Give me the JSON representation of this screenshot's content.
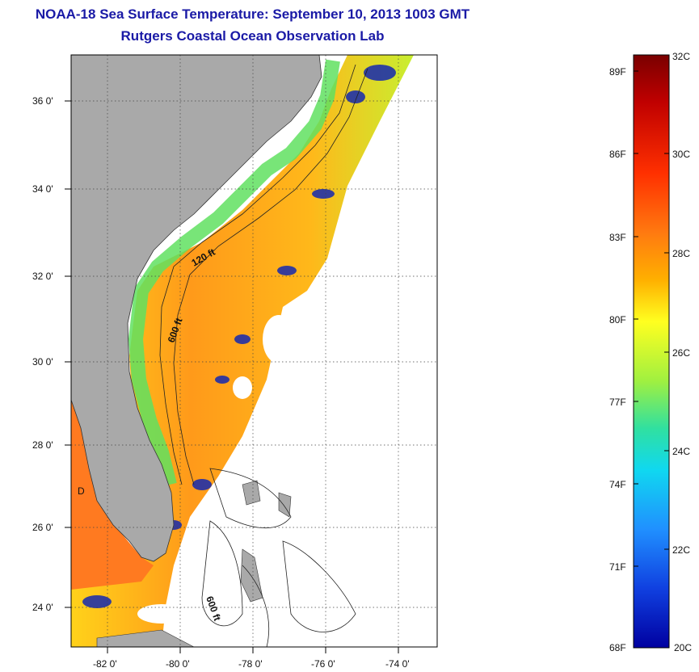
{
  "title_line1": "NOAA-18 Sea Surface Temperature:  September 10, 2013 1003 GMT",
  "title_line2": "Rutgers Coastal Ocean Observation Lab",
  "map": {
    "lat_ticks": [
      "36 0'",
      "34 0'",
      "32 0'",
      "30 0'",
      "28 0'",
      "26 0'",
      "24 0'"
    ],
    "lon_ticks": [
      "-82 0'",
      "-80 0'",
      "-78 0'",
      "-76 0'",
      "-74 0'"
    ],
    "contour_labels": [
      "120 ft",
      "600 ft",
      "600 ft"
    ],
    "land_color": "#a9a9a9",
    "region_label": "D"
  },
  "colorbar": {
    "fahrenheit_labels": [
      "89F",
      "86F",
      "83F",
      "80F",
      "77F",
      "74F",
      "71F",
      "68F"
    ],
    "celsius_labels": [
      "32C",
      "30C",
      "28C",
      "26C",
      "24C",
      "22C",
      "20C"
    ],
    "colors_top_to_bottom": [
      "#7a0000",
      "#c00000",
      "#ff3000",
      "#ff7a10",
      "#ffb000",
      "#ffff20",
      "#a0f040",
      "#30e0a0",
      "#10d8f0",
      "#2090ff",
      "#1040e0",
      "#0000a0"
    ]
  }
}
